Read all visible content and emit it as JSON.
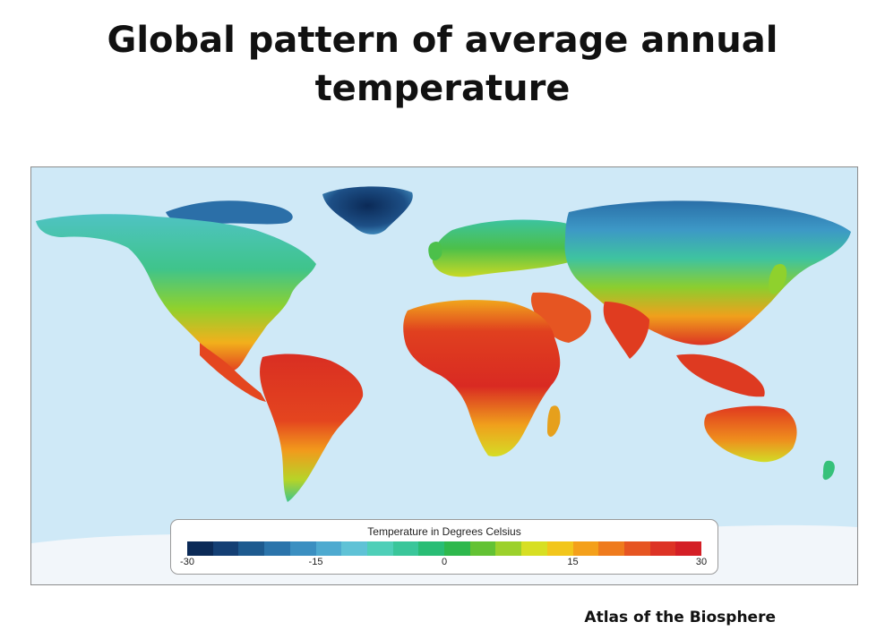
{
  "slide": {
    "title_line1": "Global pattern of average annual",
    "title_line2": "temperature",
    "source": "Atlas of the Biosphere"
  },
  "map": {
    "ocean_color": "#cfe9f7",
    "legend": {
      "title": "Temperature in Degrees Celsius",
      "min": -30,
      "max": 30,
      "ticks": [
        "-30",
        "-15",
        "0",
        "15",
        "30"
      ],
      "tick_values": [
        -30,
        -15,
        0,
        15,
        30
      ],
      "colors": [
        "#0b2a57",
        "#143f74",
        "#1d5a8f",
        "#2b74ab",
        "#3b8fc1",
        "#4eaad0",
        "#5fc2d6",
        "#4fcfb8",
        "#3ac69a",
        "#29bd75",
        "#2eb84c",
        "#63c234",
        "#9cd12b",
        "#d7df23",
        "#f2c61c",
        "#f4a01b",
        "#ef7b1d",
        "#e65522",
        "#dd3325",
        "#d41f26"
      ]
    }
  }
}
